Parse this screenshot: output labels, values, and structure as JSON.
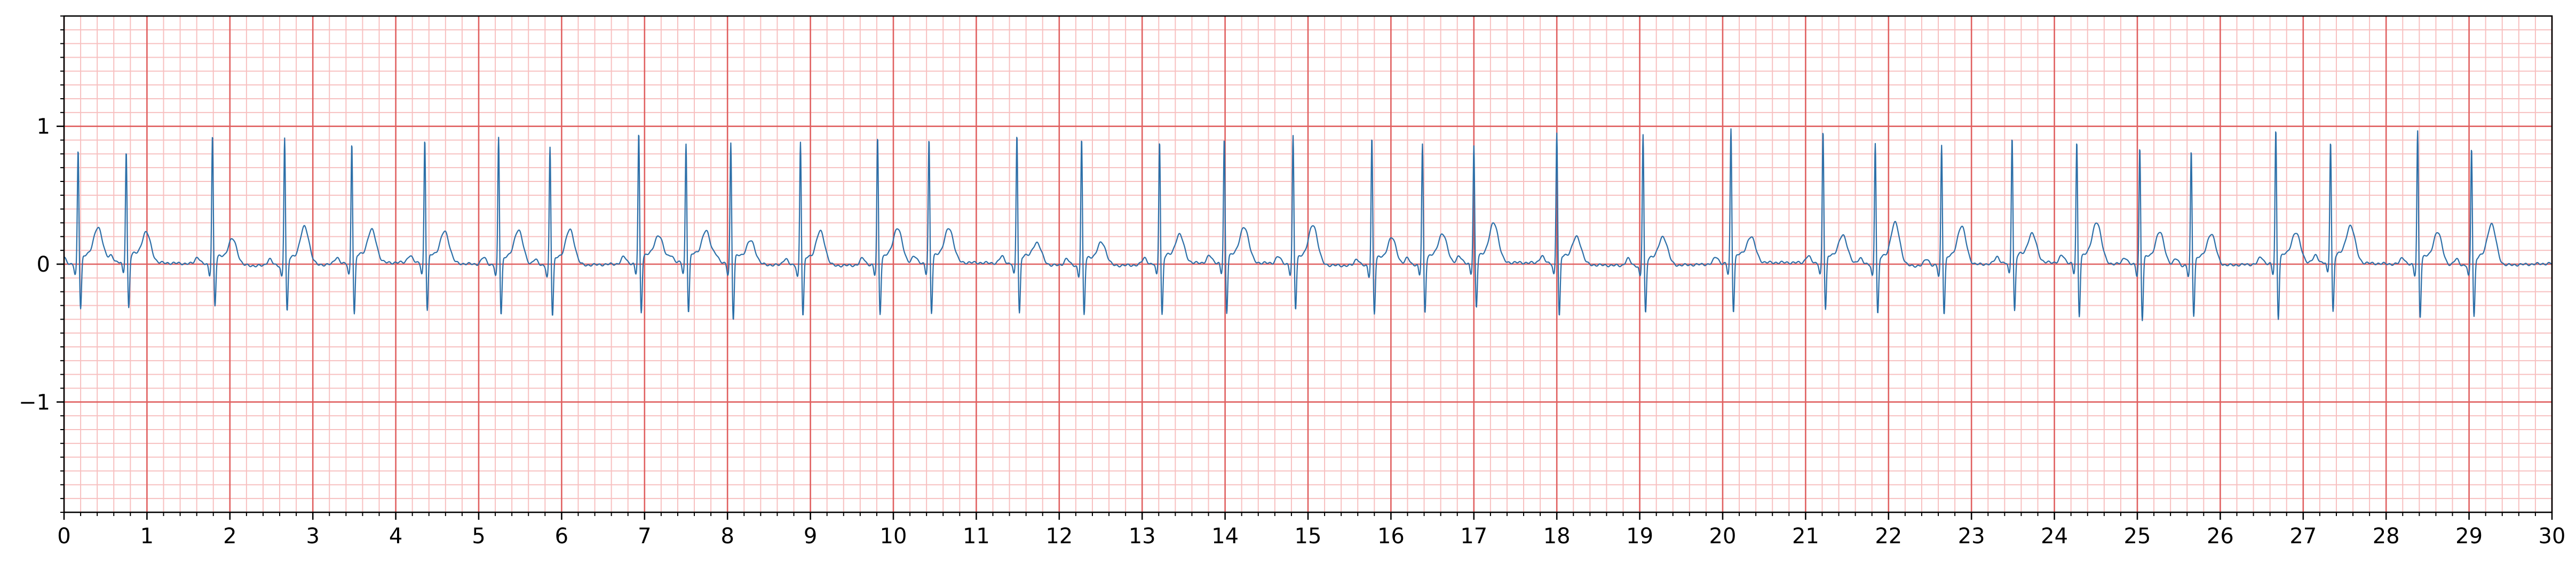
{
  "chart_data": {
    "type": "line",
    "title": "",
    "xlabel": "",
    "ylabel": "",
    "xlim": [
      0,
      30
    ],
    "ylim": [
      -1.8,
      1.8
    ],
    "x_ticks": [
      0,
      1,
      2,
      3,
      4,
      5,
      6,
      7,
      8,
      9,
      10,
      11,
      12,
      13,
      14,
      15,
      16,
      17,
      18,
      19,
      20,
      21,
      22,
      23,
      24,
      25,
      26,
      27,
      28,
      29,
      30
    ],
    "x_tick_labels": [
      "0",
      "1",
      "2",
      "3",
      "4",
      "5",
      "6",
      "7",
      "8",
      "9",
      "10",
      "11",
      "12",
      "13",
      "14",
      "15",
      "16",
      "17",
      "18",
      "19",
      "20",
      "21",
      "22",
      "23",
      "24",
      "25",
      "26",
      "27",
      "28",
      "29",
      "30"
    ],
    "y_ticks": [
      -1,
      0,
      1
    ],
    "y_tick_labels": [
      "−1",
      "0",
      "1"
    ],
    "grid": {
      "major": true,
      "minor": true,
      "major_x_step": 1,
      "major_y_step": 1,
      "minor_x_step": 0.2,
      "minor_y_step": 0.1,
      "major_color": "#e06060",
      "minor_color": "#f7c0c0"
    },
    "line_color": "#2c6fa8",
    "background": "#ffffff",
    "series": [
      {
        "name": "",
        "beats": [
          {
            "t": 0.17,
            "r": 0.82,
            "s": -0.36,
            "t_wave": 0.26
          },
          {
            "t": 0.75,
            "r": 0.81,
            "s": -0.36,
            "t_wave": 0.22
          },
          {
            "t": 1.79,
            "r": 0.94,
            "s": -0.33,
            "t_wave": 0.19
          },
          {
            "t": 2.66,
            "r": 0.93,
            "s": -0.37,
            "t_wave": 0.28
          },
          {
            "t": 3.47,
            "r": 0.88,
            "s": -0.4,
            "t_wave": 0.24
          },
          {
            "t": 4.35,
            "r": 0.89,
            "s": -0.38,
            "t_wave": 0.23
          },
          {
            "t": 5.24,
            "r": 0.92,
            "s": -0.39,
            "t_wave": 0.26
          },
          {
            "t": 5.86,
            "r": 0.86,
            "s": -0.4,
            "t_wave": 0.26
          },
          {
            "t": 6.93,
            "r": 0.94,
            "s": -0.39,
            "t_wave": 0.2
          },
          {
            "t": 7.5,
            "r": 0.86,
            "s": -0.39,
            "t_wave": 0.23
          },
          {
            "t": 8.04,
            "r": 0.87,
            "s": -0.44,
            "t_wave": 0.17
          },
          {
            "t": 8.88,
            "r": 0.9,
            "s": -0.4,
            "t_wave": 0.25
          },
          {
            "t": 9.81,
            "r": 0.92,
            "s": -0.39,
            "t_wave": 0.26
          },
          {
            "t": 10.43,
            "r": 0.89,
            "s": -0.4,
            "t_wave": 0.25
          },
          {
            "t": 11.49,
            "r": 0.94,
            "s": -0.39,
            "t_wave": 0.16
          },
          {
            "t": 12.27,
            "r": 0.92,
            "s": -0.39,
            "t_wave": 0.17
          },
          {
            "t": 13.21,
            "r": 0.9,
            "s": -0.4,
            "t_wave": 0.21
          },
          {
            "t": 13.99,
            "r": 0.89,
            "s": -0.4,
            "t_wave": 0.26
          },
          {
            "t": 14.82,
            "r": 0.92,
            "s": -0.36,
            "t_wave": 0.29
          },
          {
            "t": 15.77,
            "r": 0.93,
            "s": -0.38,
            "t_wave": 0.2
          },
          {
            "t": 16.38,
            "r": 0.87,
            "s": -0.38,
            "t_wave": 0.22
          },
          {
            "t": 17.0,
            "r": 0.84,
            "s": -0.36,
            "t_wave": 0.29
          },
          {
            "t": 18.0,
            "r": 0.95,
            "s": -0.42,
            "t_wave": 0.2
          },
          {
            "t": 19.04,
            "r": 0.95,
            "s": -0.38,
            "t_wave": 0.21
          },
          {
            "t": 20.1,
            "r": 0.97,
            "s": -0.38,
            "t_wave": 0.19
          },
          {
            "t": 21.21,
            "r": 0.96,
            "s": -0.37,
            "t_wave": 0.21
          },
          {
            "t": 21.84,
            "r": 0.89,
            "s": -0.39,
            "t_wave": 0.31
          },
          {
            "t": 22.64,
            "r": 0.87,
            "s": -0.38,
            "t_wave": 0.28
          },
          {
            "t": 23.49,
            "r": 0.92,
            "s": -0.38,
            "t_wave": 0.21
          },
          {
            "t": 24.27,
            "r": 0.87,
            "s": -0.42,
            "t_wave": 0.3
          },
          {
            "t": 25.03,
            "r": 0.85,
            "s": -0.43,
            "t_wave": 0.24
          },
          {
            "t": 25.65,
            "r": 0.83,
            "s": -0.39,
            "t_wave": 0.23
          },
          {
            "t": 26.67,
            "r": 0.97,
            "s": -0.43,
            "t_wave": 0.22
          },
          {
            "t": 27.33,
            "r": 0.88,
            "s": -0.39,
            "t_wave": 0.27
          },
          {
            "t": 28.38,
            "r": 0.97,
            "s": -0.41,
            "t_wave": 0.24
          },
          {
            "t": 29.03,
            "r": 0.86,
            "s": -0.4,
            "t_wave": 0.3
          }
        ]
      }
    ]
  }
}
